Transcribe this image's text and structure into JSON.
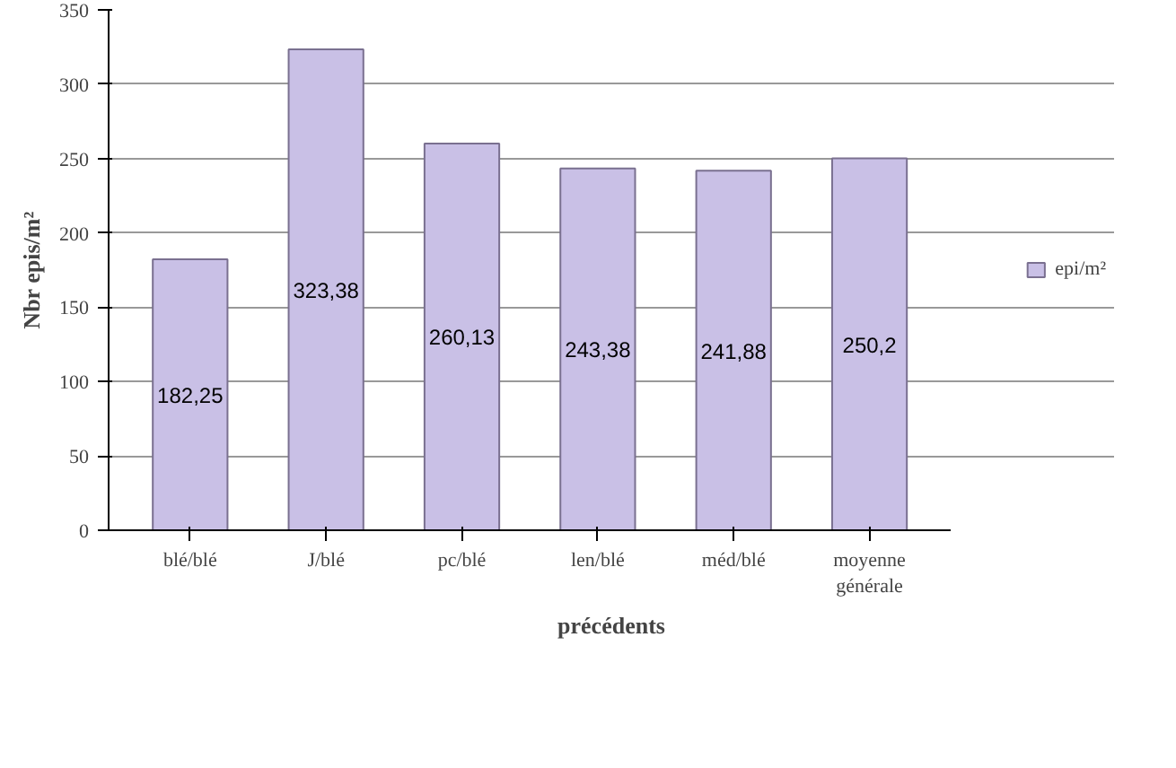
{
  "chart_data": {
    "type": "bar",
    "xlabel": "précédents",
    "ylabel": "Nbr epis/m²",
    "categories": [
      "blé/blé",
      "J/blé",
      "pc/blé",
      "len/blé",
      "méd/blé",
      "moyenne générale"
    ],
    "series": [
      {
        "name": "epi/m²",
        "color": "#c9c0e6",
        "values": [
          182.25,
          323.38,
          260.13,
          243.38,
          241.88,
          250.2
        ],
        "value_labels": [
          "182,25",
          "323,38",
          "260,13",
          "243,38",
          "241,88",
          "250,2"
        ]
      }
    ],
    "ylim": [
      0,
      350
    ],
    "yticks": [
      0,
      50,
      100,
      150,
      200,
      250,
      300,
      350
    ],
    "grid": "y",
    "legend": "right"
  }
}
